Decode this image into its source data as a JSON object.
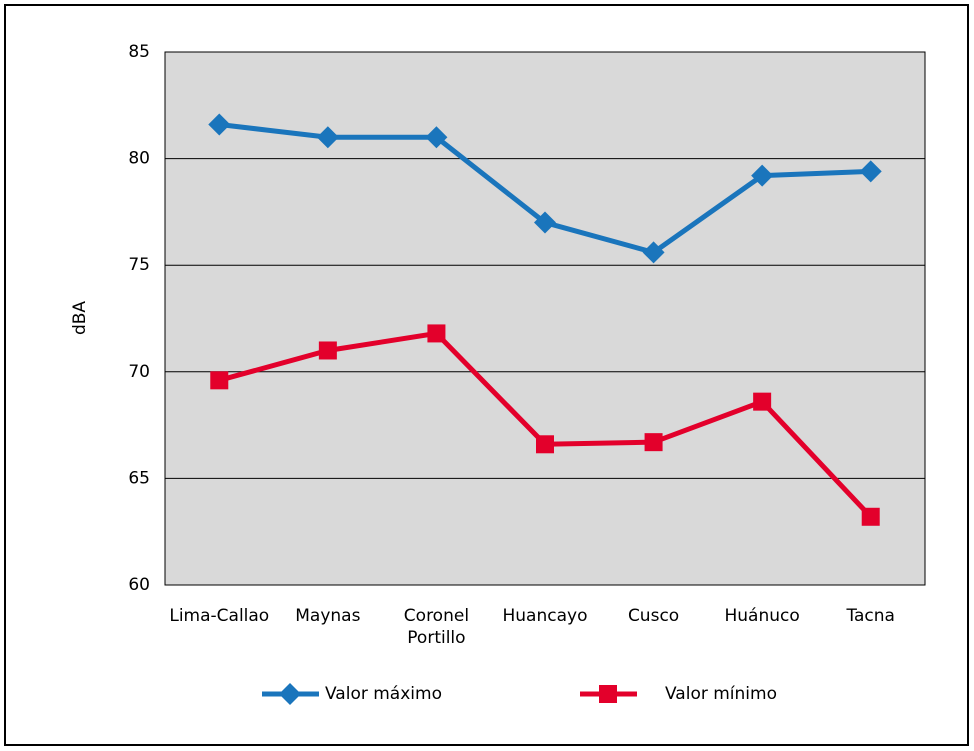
{
  "chart_data": {
    "type": "line",
    "y_label": "dBA",
    "categories": [
      "Lima-Callao",
      "Maynas",
      "Coronel Portillo",
      "Huancayo",
      "Cusco",
      "Huánuco",
      "Tacna"
    ],
    "series": [
      {
        "name": "Valor máximo",
        "color": "#1a75bc",
        "marker": "diamond",
        "values": [
          81.6,
          81.0,
          81.0,
          77.0,
          75.6,
          79.2,
          79.4
        ]
      },
      {
        "name": "Valor mínimo",
        "color": "#e3002b",
        "marker": "square",
        "values": [
          69.6,
          71.0,
          71.8,
          66.6,
          66.7,
          68.6,
          63.2
        ]
      }
    ],
    "ylim": [
      60,
      85
    ],
    "yticks": [
      60,
      65,
      70,
      75,
      80,
      85
    ],
    "grid": true
  }
}
